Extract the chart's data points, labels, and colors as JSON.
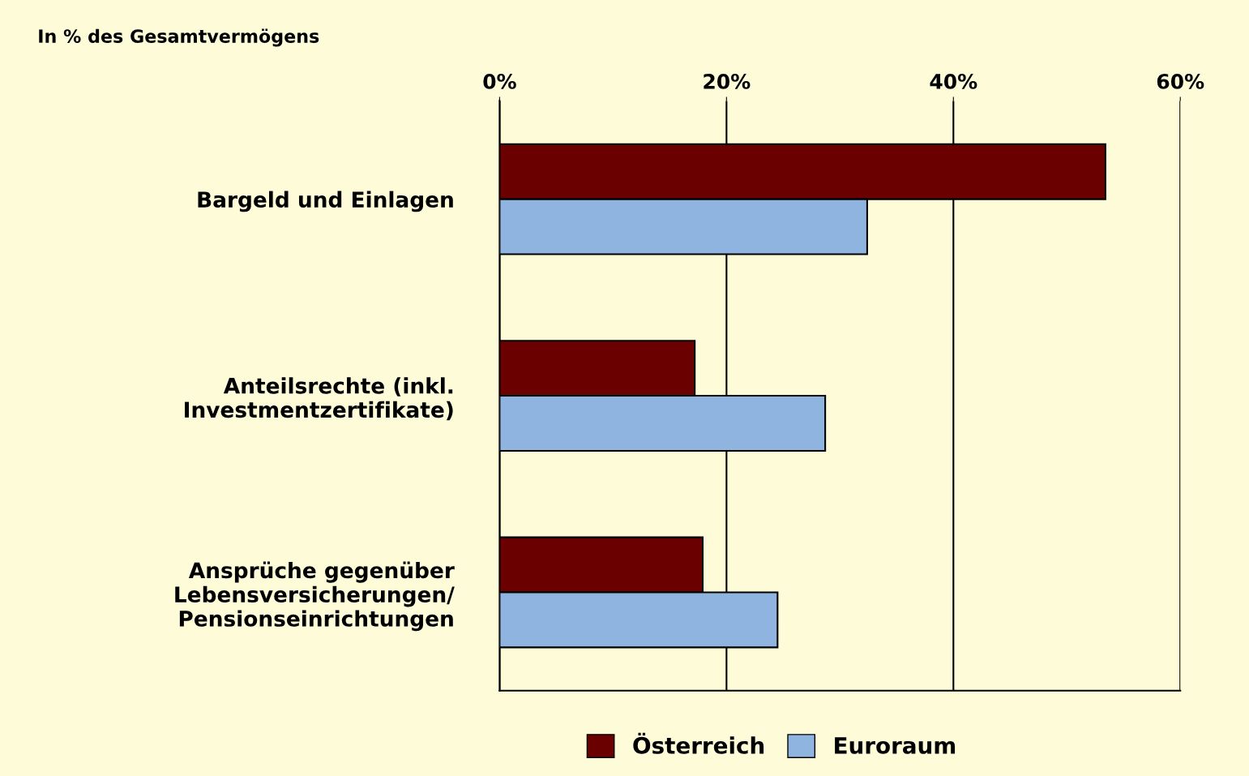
{
  "chart_data": {
    "type": "bar",
    "orientation": "horizontal",
    "title": "In % des Gesamtvermögens",
    "categories": [
      "Bargeld und Einlagen",
      "Anteilsrechte (inkl.\nInvestmentzertifikate)",
      "Ansprüche gegenüber\nLebensversicherungen/\nPensionseinrichtungen"
    ],
    "series": [
      {
        "name": "Österreich",
        "color": "#6b0000",
        "values": [
          53.4,
          17.2,
          17.9
        ]
      },
      {
        "name": "Euroraum",
        "color": "#8fb4e0",
        "values": [
          32.4,
          28.7,
          24.5
        ]
      }
    ],
    "xlim": [
      0,
      60
    ],
    "xticks": [
      {
        "value": 0,
        "label": "0%"
      },
      {
        "value": 20,
        "label": "20%"
      },
      {
        "value": 40,
        "label": "40%"
      },
      {
        "value": 60,
        "label": "60%"
      }
    ],
    "grid": "x",
    "legend": "bottom"
  }
}
